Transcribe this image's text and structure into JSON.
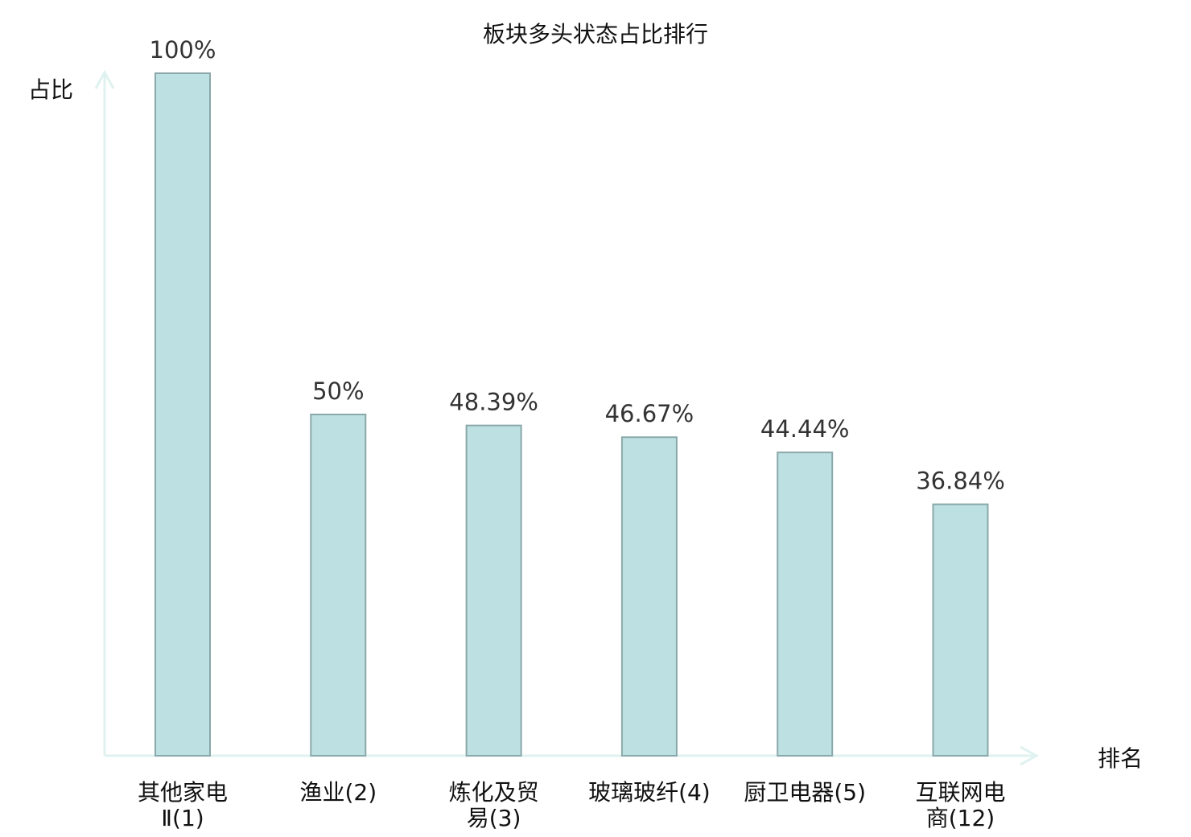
{
  "chart_data": {
    "type": "bar",
    "title": "板块多头状态占比排行",
    "xlabel": "排名",
    "ylabel": "占比",
    "ylim": [
      0,
      100
    ],
    "grid": false,
    "categories": [
      [
        "其他家电",
        "Ⅱ(1)"
      ],
      [
        "渔业(2)"
      ],
      [
        "炼化及贸",
        "易(3)"
      ],
      [
        "玻璃玻纤(4)"
      ],
      [
        "厨卫电器(5)"
      ],
      [
        "互联网电",
        "商(12)"
      ]
    ],
    "values": [
      100,
      50,
      48.39,
      46.67,
      44.44,
      36.84
    ],
    "data_labels": [
      "100%",
      "50%",
      "48.39%",
      "46.67%",
      "44.44%",
      "36.84%"
    ],
    "highlight_index": 5,
    "colors": {
      "bar_fill": "#bde0e3",
      "bar_stroke": "#8aa8aa",
      "axis": "#dff2ef",
      "highlight_text": "#e8141c",
      "text": "#111111"
    }
  }
}
